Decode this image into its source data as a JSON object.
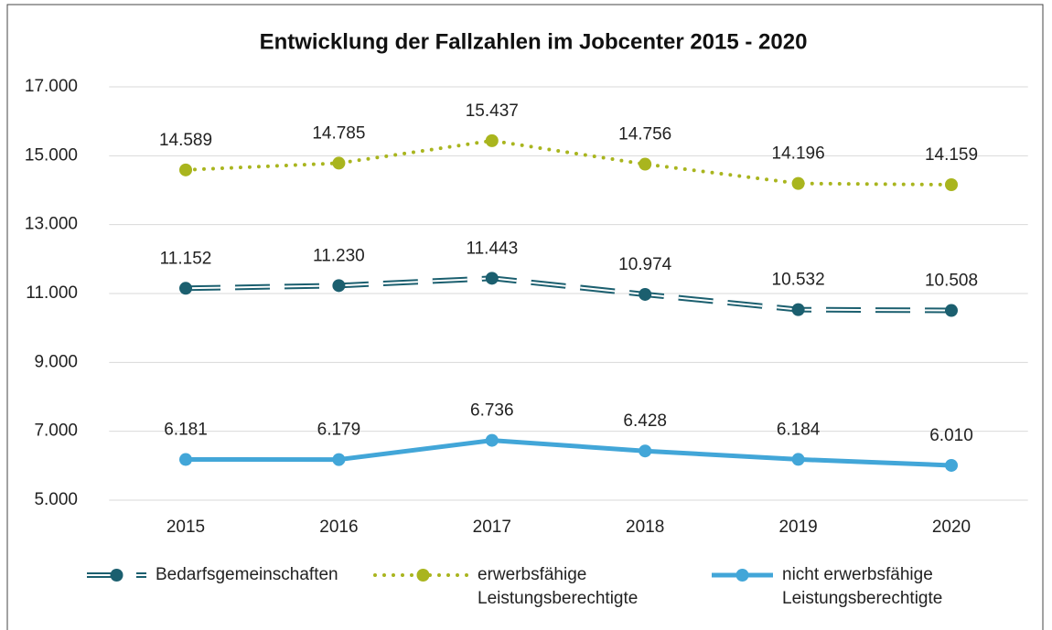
{
  "chart_data": {
    "type": "line",
    "title": "Entwicklung der Fallzahlen im Jobcenter 2015 - 2020",
    "categories": [
      "2015",
      "2016",
      "2017",
      "2018",
      "2019",
      "2020"
    ],
    "ylim": [
      5000,
      17000
    ],
    "yticks": [
      {
        "value": 5000,
        "label": "5.000"
      },
      {
        "value": 7000,
        "label": "7.000"
      },
      {
        "value": 9000,
        "label": "9.000"
      },
      {
        "value": 11000,
        "label": "11.000"
      },
      {
        "value": 13000,
        "label": "13.000"
      },
      {
        "value": 15000,
        "label": "15.000"
      },
      {
        "value": 17000,
        "label": "17.000"
      }
    ],
    "grid": true,
    "legend": "bottom",
    "series": [
      {
        "name": "Bedarfsgemeinschaften",
        "color": "#1b5f6f",
        "linestyle": "double-dashed",
        "values": [
          11152,
          11230,
          11443,
          10974,
          10532,
          10508
        ],
        "value_labels": [
          "11.152",
          "11.230",
          "11.443",
          "10.974",
          "10.532",
          "10.508"
        ]
      },
      {
        "name": "erwerbsfähige Leistungsberechtigte",
        "color": "#a9b51e",
        "linestyle": "dotted",
        "values": [
          14589,
          14785,
          15437,
          14756,
          14196,
          14159
        ],
        "value_labels": [
          "14.589",
          "14.785",
          "15.437",
          "14.756",
          "14.196",
          "14.159"
        ]
      },
      {
        "name": "nicht erwerbsfähige Leistungsberechtigte",
        "color": "#42a6d8",
        "linestyle": "solid",
        "values": [
          6181,
          6179,
          6736,
          6428,
          6184,
          6010
        ],
        "value_labels": [
          "6.181",
          "6.179",
          "6.736",
          "6.428",
          "6.184",
          "6.010"
        ]
      }
    ]
  }
}
